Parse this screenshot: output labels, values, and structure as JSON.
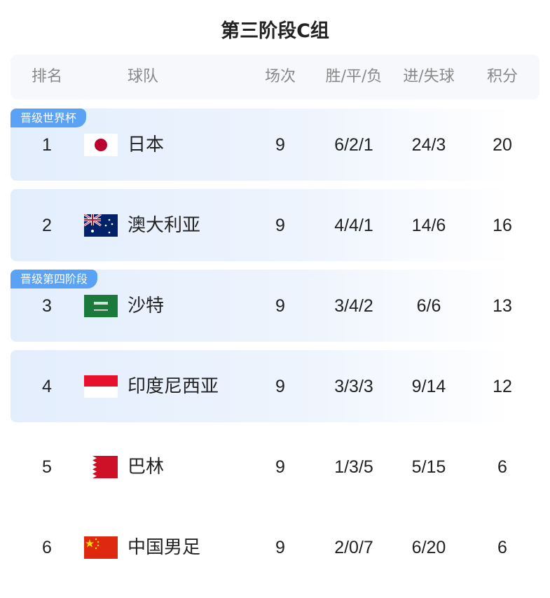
{
  "title": "第三阶段C组",
  "headers": {
    "rank": "排名",
    "team": "球队",
    "played": "场次",
    "wdl": "胜/平/负",
    "goals": "进/失球",
    "points": "积分"
  },
  "badges": {
    "world_cup": "晋级世界杯",
    "fourth_stage": "晋级第四阶段"
  },
  "rows": [
    {
      "rank": "1",
      "team": "日本",
      "flag": "japan",
      "played": "9",
      "wdl": "6/2/1",
      "goals": "24/3",
      "points": "20"
    },
    {
      "rank": "2",
      "team": "澳大利亚",
      "flag": "australia",
      "played": "9",
      "wdl": "4/4/1",
      "goals": "14/6",
      "points": "16"
    },
    {
      "rank": "3",
      "team": "沙特",
      "flag": "saudi-arabia",
      "played": "9",
      "wdl": "3/4/2",
      "goals": "6/6",
      "points": "13"
    },
    {
      "rank": "4",
      "team": "印度尼西亚",
      "flag": "indonesia",
      "played": "9",
      "wdl": "3/3/3",
      "goals": "9/14",
      "points": "12"
    },
    {
      "rank": "5",
      "team": "巴林",
      "flag": "bahrain",
      "played": "9",
      "wdl": "1/3/5",
      "goals": "5/15",
      "points": "6"
    },
    {
      "rank": "6",
      "team": "中国男足",
      "flag": "china",
      "played": "9",
      "wdl": "2/0/7",
      "goals": "6/20",
      "points": "6"
    }
  ],
  "colors": {
    "badge": "#5aa2f6",
    "row_highlight": "#e3eefd"
  }
}
